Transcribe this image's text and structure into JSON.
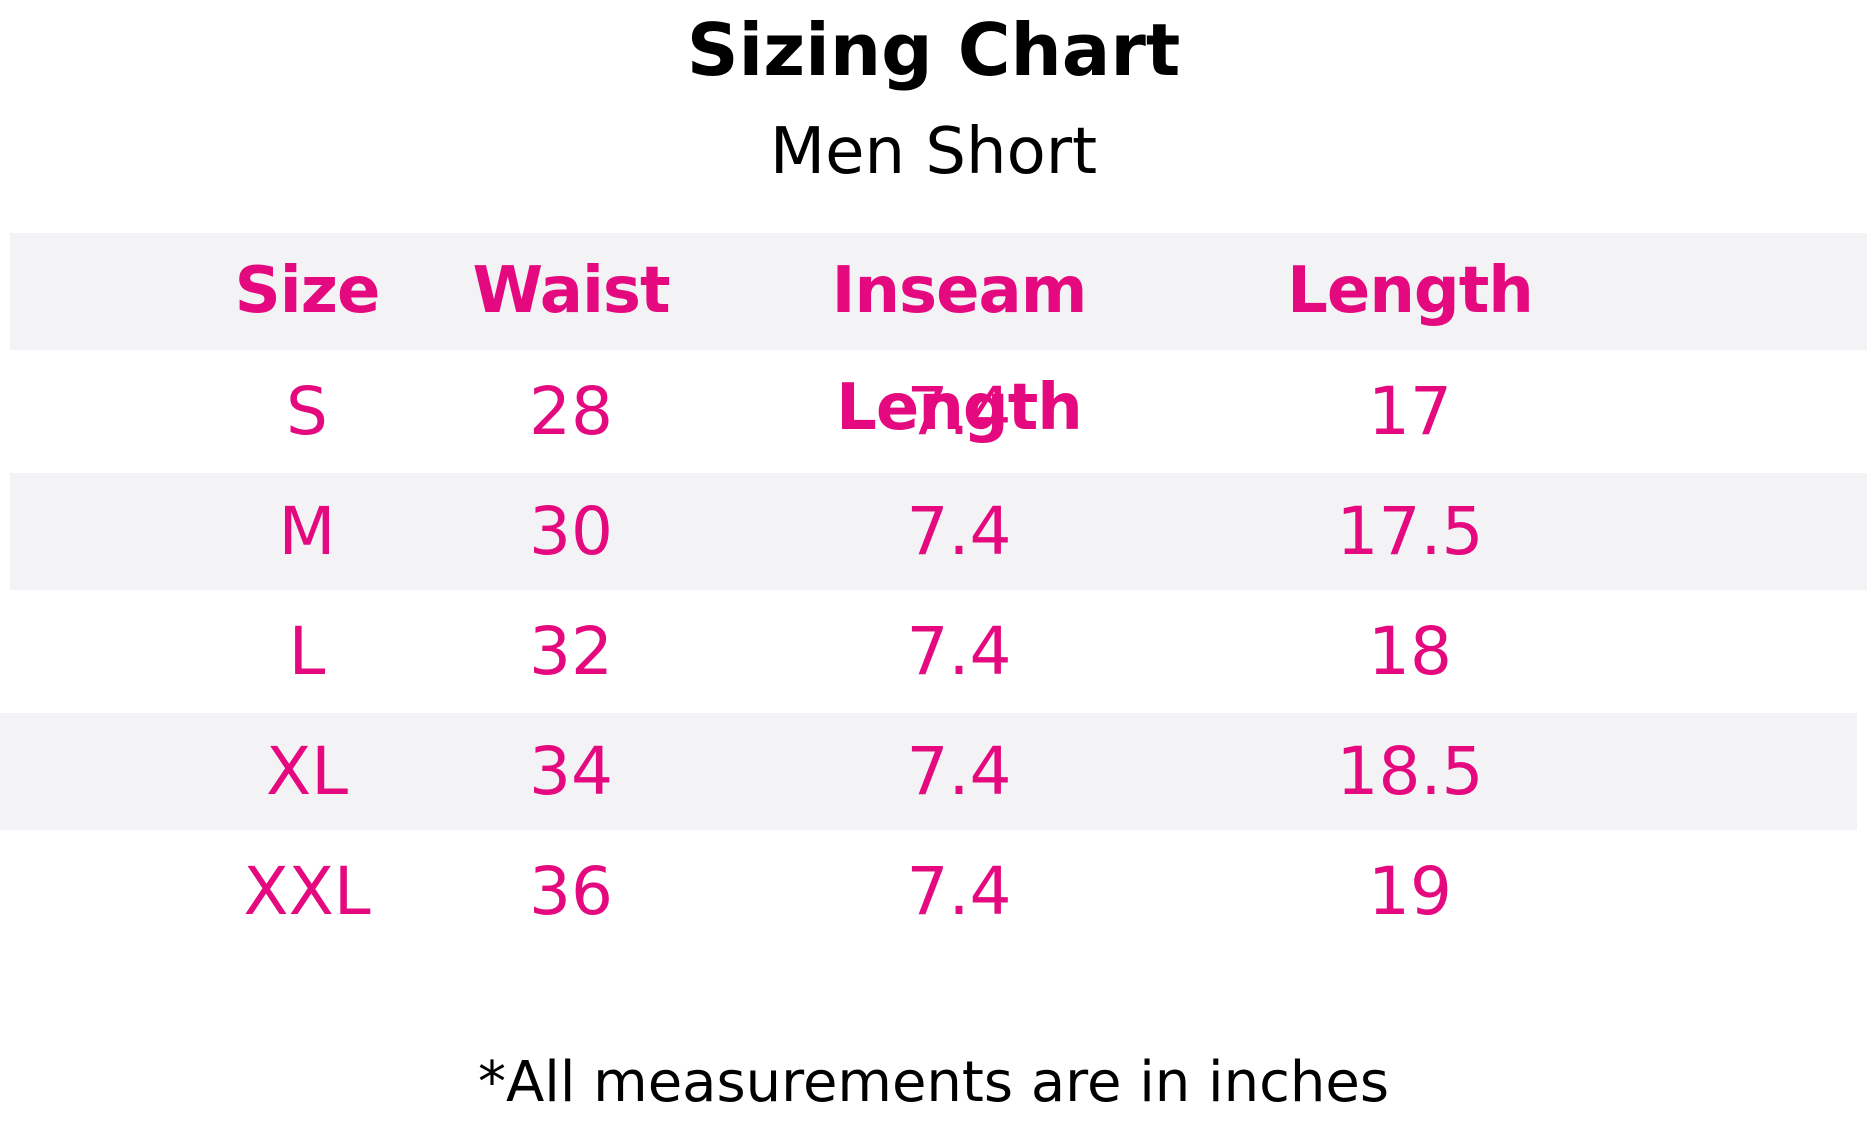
{
  "header": {
    "title": "Sizing Chart",
    "subtitle": "Men Short"
  },
  "table": {
    "columns": [
      "Size",
      "Waist",
      "Inseam Length",
      "Length"
    ],
    "rows": [
      [
        "S",
        28,
        7.4,
        17
      ],
      [
        "M",
        30,
        7.4,
        17.5
      ],
      [
        "L",
        32,
        7.4,
        18
      ],
      [
        "XL",
        34,
        7.4,
        18.5
      ],
      [
        "XXL",
        36,
        7.4,
        19
      ]
    ]
  },
  "footnote": "*All measurements are in inches"
}
